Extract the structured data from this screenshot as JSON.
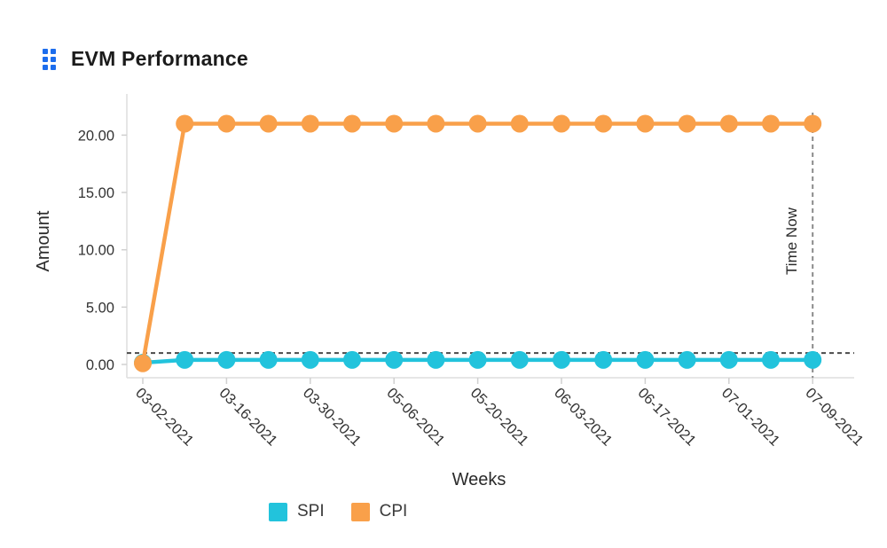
{
  "header": {
    "title": "EVM Performance",
    "icon_color": "#1c6ded"
  },
  "chart_data": {
    "type": "line",
    "title": "EVM Performance",
    "xlabel": "Weeks",
    "ylabel": "Amount",
    "num_points": 17,
    "x_tick_labels": [
      "03-02-2021",
      "03-16-2021",
      "03-30-2021",
      "05-06-2021",
      "05-20-2021",
      "06-03-2021",
      "06-17-2021",
      "07-01-2021",
      "07-09-2021"
    ],
    "x_tick_point_indices": [
      0,
      2,
      4,
      6,
      8,
      10,
      12,
      14,
      16
    ],
    "y_ticks": [
      0,
      5,
      10,
      15,
      20
    ],
    "y_tick_labels": [
      "0.00",
      "5.00",
      "10.00",
      "15.00",
      "20.00"
    ],
    "ylim": [
      0,
      23.2
    ],
    "grid": false,
    "legend_position": "bottom",
    "series": [
      {
        "name": "SPI",
        "color": "#22c3dc",
        "values": [
          0.15,
          0.4,
          0.4,
          0.4,
          0.4,
          0.4,
          0.4,
          0.4,
          0.4,
          0.4,
          0.4,
          0.4,
          0.4,
          0.4,
          0.4,
          0.4,
          0.4
        ]
      },
      {
        "name": "CPI",
        "color": "#f9a04a",
        "values": [
          0.1,
          21,
          21,
          21,
          21,
          21,
          21,
          21,
          21,
          21,
          21,
          21,
          21,
          21,
          21,
          21,
          21
        ]
      }
    ],
    "reference_lines": {
      "horizontal": {
        "value": 1.0,
        "style": "dashed",
        "color": "#4a4a4a"
      },
      "vertical": {
        "label": "Time Now",
        "at_point_index": 16,
        "style": "dashed",
        "color": "#8a8a8a"
      }
    }
  }
}
